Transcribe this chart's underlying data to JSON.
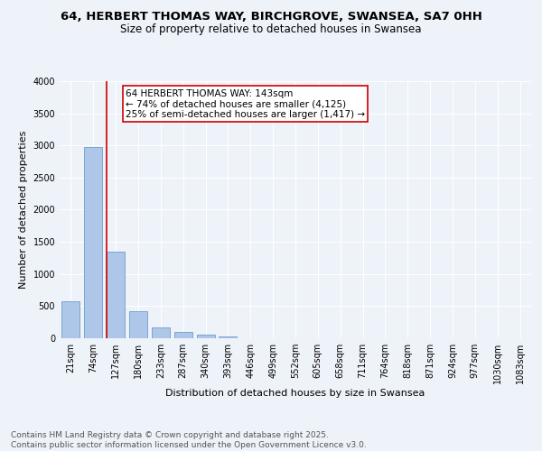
{
  "title_line1": "64, HERBERT THOMAS WAY, BIRCHGROVE, SWANSEA, SA7 0HH",
  "title_line2": "Size of property relative to detached houses in Swansea",
  "xlabel": "Distribution of detached houses by size in Swansea",
  "ylabel": "Number of detached properties",
  "bar_labels": [
    "21sqm",
    "74sqm",
    "127sqm",
    "180sqm",
    "233sqm",
    "287sqm",
    "340sqm",
    "393sqm",
    "446sqm",
    "499sqm",
    "552sqm",
    "605sqm",
    "658sqm",
    "711sqm",
    "764sqm",
    "818sqm",
    "871sqm",
    "924sqm",
    "977sqm",
    "1030sqm",
    "1083sqm"
  ],
  "bar_values": [
    580,
    2970,
    1350,
    420,
    175,
    100,
    55,
    30,
    0,
    0,
    0,
    0,
    0,
    0,
    0,
    0,
    0,
    0,
    0,
    0,
    0
  ],
  "bar_color": "#aec6e8",
  "bar_edge_color": "#5b8fc9",
  "vline_color": "#cc0000",
  "annotation_text": "64 HERBERT THOMAS WAY: 143sqm\n← 74% of detached houses are smaller (4,125)\n25% of semi-detached houses are larger (1,417) →",
  "annotation_box_color": "#cc0000",
  "ylim": [
    0,
    4000
  ],
  "yticks": [
    0,
    500,
    1000,
    1500,
    2000,
    2500,
    3000,
    3500,
    4000
  ],
  "background_color": "#eef2f9",
  "plot_background": "#eef2f9",
  "footer": "Contains HM Land Registry data © Crown copyright and database right 2025.\nContains public sector information licensed under the Open Government Licence v3.0.",
  "title_fontsize": 9.5,
  "subtitle_fontsize": 8.5,
  "axis_label_fontsize": 8,
  "tick_fontsize": 7,
  "annotation_fontsize": 7.5,
  "footer_fontsize": 6.5
}
